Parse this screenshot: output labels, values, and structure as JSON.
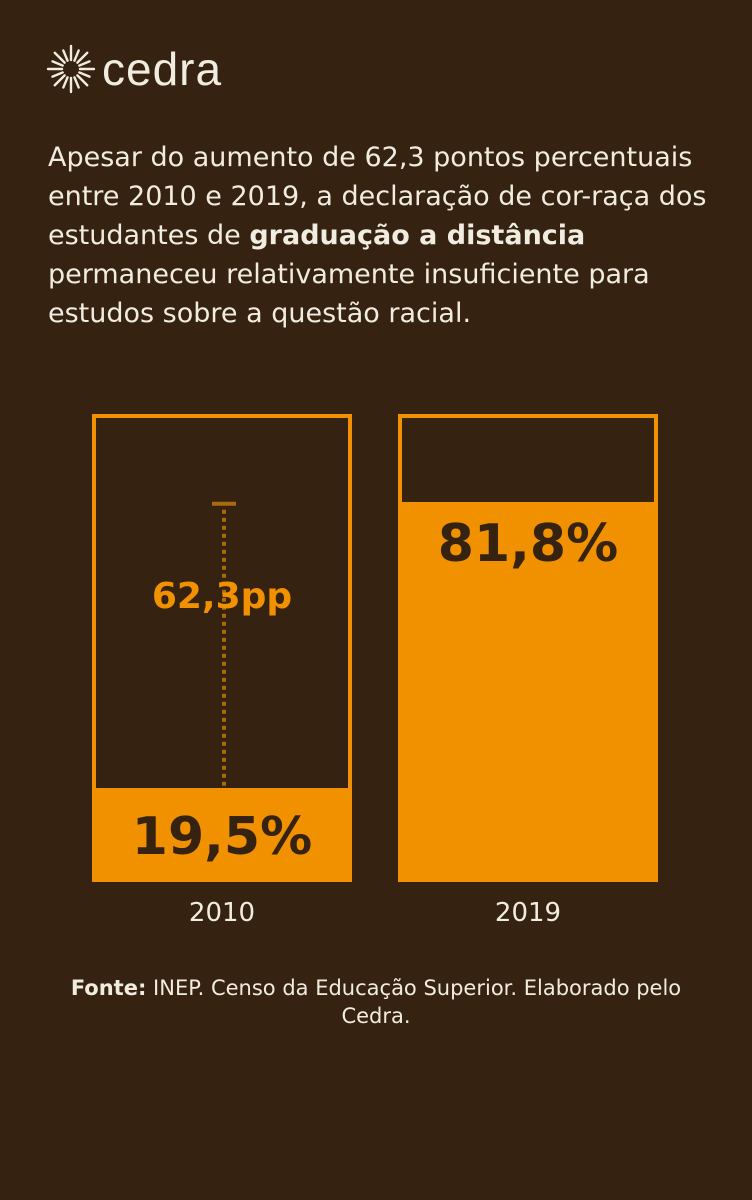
{
  "brand": {
    "name": "cedra"
  },
  "intro": {
    "part1": "Apesar do aumento de 62,3 pontos percentuais entre 2010 e 2019, a declaração de cor-raça dos estudantes de ",
    "bold": "graduação a distância",
    "part2": " permaneceu relativamente insuficiente para estudos sobre a questão racial."
  },
  "chart_data": {
    "type": "bar",
    "categories": [
      "2010",
      "2019"
    ],
    "values": [
      19.5,
      81.8
    ],
    "labels": [
      "19,5%",
      "81,8%"
    ],
    "annotation": "62,3pp",
    "ylim": [
      0,
      100
    ],
    "title": "",
    "xlabel": "",
    "ylabel": ""
  },
  "source": {
    "label": "Fonte:",
    "text": " INEP. Censo da Educação Superior. Elaborado pelo Cedra."
  },
  "colors": {
    "background": "#352211",
    "accent": "#f29100",
    "text": "#f1ece0"
  }
}
